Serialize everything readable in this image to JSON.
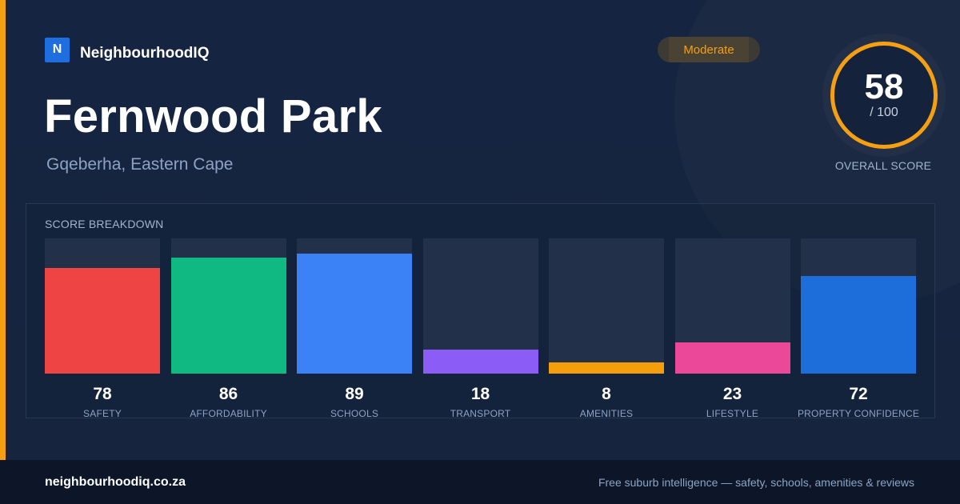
{
  "brand": {
    "logo_letter": "N",
    "name": "NeighbourhoodIQ"
  },
  "badge": {
    "label": "Moderate",
    "color": "#f5a012"
  },
  "suburb": {
    "name": "Fernwood Park",
    "location": "Gqeberha, Eastern Cape"
  },
  "overall": {
    "score": "58",
    "max": "/ 100",
    "label": "OVERALL SCORE",
    "ring_color": "#f5a012"
  },
  "breakdown": {
    "label": "SCORE BREAKDOWN",
    "max_value": 100,
    "items": [
      {
        "label": "SAFETY",
        "value": 78,
        "color": "#ef4444"
      },
      {
        "label": "AFFORDABILITY",
        "value": 86,
        "color": "#10b981"
      },
      {
        "label": "SCHOOLS",
        "value": 89,
        "color": "#3b82f6"
      },
      {
        "label": "TRANSPORT",
        "value": 18,
        "color": "#8b5cf6"
      },
      {
        "label": "AMENITIES",
        "value": 8,
        "color": "#f59e0b"
      },
      {
        "label": "LIFESTYLE",
        "value": 23,
        "color": "#ec4899"
      },
      {
        "label": "PROPERTY CONFIDENCE",
        "value": 72,
        "color": "#1d6ddb"
      }
    ]
  },
  "footer": {
    "url": "neighbourhoodiq.co.za",
    "tagline": "Free suburb intelligence — safety, schools, amenities & reviews"
  }
}
